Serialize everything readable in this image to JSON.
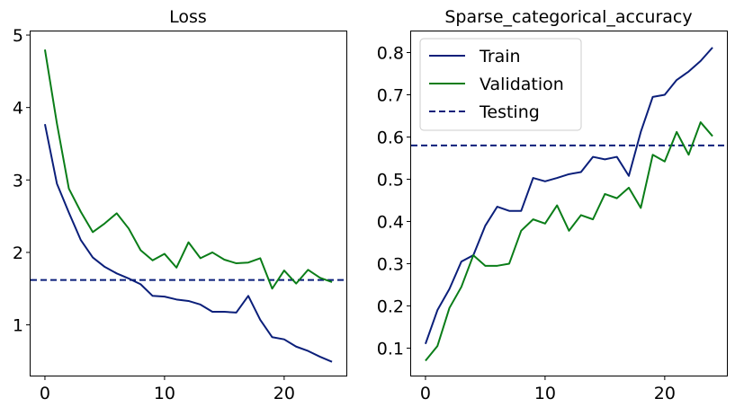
{
  "chart_data": [
    {
      "type": "line",
      "title": "Loss",
      "xlabel": "",
      "ylabel": "",
      "xlim": [
        -1.2,
        25.2
      ],
      "ylim": [
        0.3,
        5.05
      ],
      "xticks": [
        0,
        10,
        20
      ],
      "yticks": [
        1,
        2,
        3,
        4,
        5
      ],
      "x": [
        0,
        1,
        2,
        3,
        4,
        5,
        6,
        7,
        8,
        9,
        10,
        11,
        12,
        13,
        14,
        15,
        16,
        17,
        18,
        19,
        20,
        21,
        22,
        23,
        24
      ],
      "series": [
        {
          "name": "Train",
          "color": "#0b1f7a",
          "values": [
            3.77,
            2.95,
            2.55,
            2.17,
            1.93,
            1.8,
            1.71,
            1.64,
            1.56,
            1.4,
            1.39,
            1.35,
            1.33,
            1.28,
            1.18,
            1.18,
            1.17,
            1.4,
            1.07,
            0.83,
            0.8,
            0.7,
            0.64,
            0.56,
            0.49
          ]
        },
        {
          "name": "Validation",
          "color": "#0a7d18",
          "values": [
            4.8,
            3.78,
            2.88,
            2.56,
            2.28,
            2.4,
            2.54,
            2.33,
            2.03,
            1.89,
            1.98,
            1.79,
            2.14,
            1.92,
            2.0,
            1.9,
            1.85,
            1.86,
            1.92,
            1.5,
            1.75,
            1.57,
            1.76,
            1.65,
            1.59
          ]
        }
      ],
      "hlines": [
        {
          "name": "Testing",
          "value": 1.62,
          "color": "#0b1f7a",
          "style": "dashed"
        }
      ],
      "legend": null
    },
    {
      "type": "line",
      "title": "Sparse_categorical_accuracy",
      "xlabel": "",
      "ylabel": "",
      "xlim": [
        -1.2,
        25.2
      ],
      "ylim": [
        0.035,
        0.85
      ],
      "xticks": [
        0,
        10,
        20
      ],
      "yticks": [
        0.1,
        0.2,
        0.3,
        0.4,
        0.5,
        0.6,
        0.7,
        0.8
      ],
      "x": [
        0,
        1,
        2,
        3,
        4,
        5,
        6,
        7,
        8,
        9,
        10,
        11,
        12,
        13,
        14,
        15,
        16,
        17,
        18,
        19,
        20,
        21,
        22,
        23,
        24
      ],
      "series": [
        {
          "name": "Train",
          "color": "#0b1f7a",
          "values": [
            0.11,
            0.19,
            0.24,
            0.305,
            0.32,
            0.39,
            0.435,
            0.425,
            0.425,
            0.503,
            0.495,
            0.503,
            0.512,
            0.517,
            0.553,
            0.547,
            0.553,
            0.508,
            0.612,
            0.695,
            0.7,
            0.735,
            0.755,
            0.78,
            0.812
          ]
        },
        {
          "name": "Validation",
          "color": "#0a7d18",
          "values": [
            0.07,
            0.105,
            0.195,
            0.245,
            0.32,
            0.295,
            0.295,
            0.3,
            0.378,
            0.405,
            0.395,
            0.438,
            0.378,
            0.415,
            0.405,
            0.465,
            0.455,
            0.48,
            0.432,
            0.558,
            0.542,
            0.612,
            0.558,
            0.635,
            0.602
          ]
        }
      ],
      "hlines": [
        {
          "name": "Testing",
          "value": 0.58,
          "color": "#0b1f7a",
          "style": "dashed"
        }
      ],
      "legend": {
        "placement": "top-left",
        "entries": [
          "Train",
          "Validation",
          "Testing"
        ]
      }
    }
  ]
}
